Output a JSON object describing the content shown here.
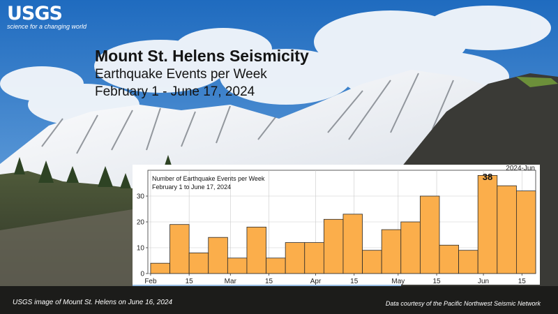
{
  "logo": {
    "word": "USGS",
    "tagline": "science for a changing world"
  },
  "header": {
    "title": "Mount St. Helens Seismicity",
    "subtitle": "Earthquake Events per Week",
    "date_range": "February 1 - June 17, 2024"
  },
  "captions": {
    "left": "USGS image of Mount St. Helens on June 16, 2024",
    "right": "Data courtesy of the Pacific Northwest Seismic Network"
  },
  "colors": {
    "bar": "#FBAE4B",
    "bar_edge": "#2a2a2a",
    "sky": "#2f78c6",
    "rock": "#3a3a36"
  },
  "chart_data": {
    "type": "bar",
    "title": "Number of Earthquake Events per Week",
    "subtitle": "February 1 to June 17, 2024",
    "week_starts": [
      "2024-02-01",
      "2024-02-08",
      "2024-02-15",
      "2024-02-22",
      "2024-02-29",
      "2024-03-07",
      "2024-03-14",
      "2024-03-21",
      "2024-03-28",
      "2024-04-04",
      "2024-04-11",
      "2024-04-18",
      "2024-04-25",
      "2024-05-02",
      "2024-05-09",
      "2024-05-16",
      "2024-05-23",
      "2024-05-30",
      "2024-06-06",
      "2024-06-13"
    ],
    "values": [
      4,
      19,
      8,
      14,
      6,
      18,
      6,
      12,
      12,
      21,
      23,
      9,
      17,
      20,
      30,
      11,
      9,
      38,
      34,
      32
    ],
    "x_tick_labels": [
      "Feb",
      "15",
      "Mar",
      "15",
      "Apr",
      "15",
      "May",
      "15",
      "Jun",
      "15"
    ],
    "y_ticks": [
      0,
      10,
      20,
      30
    ],
    "ylim": [
      0,
      40
    ],
    "corner_label": "2024-Jun",
    "highlight_label": "38",
    "grid": true
  }
}
